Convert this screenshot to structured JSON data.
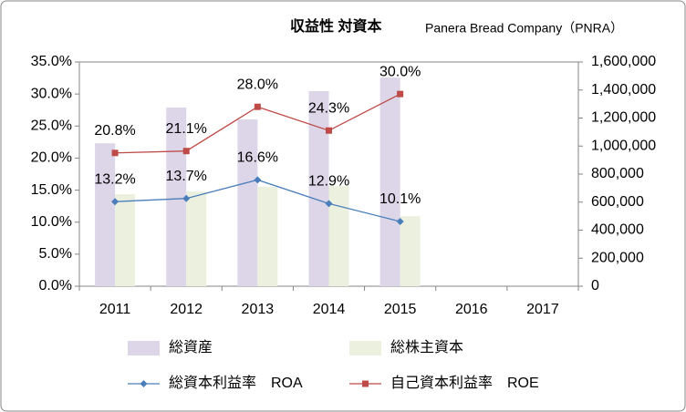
{
  "chart_data": {
    "type": "bar",
    "title": "収益性 対資本",
    "subtitle": "Panera Bread Company（PNRA）",
    "categories": [
      "2011",
      "2012",
      "2013",
      "2014",
      "2015",
      "2016",
      "2017"
    ],
    "series": [
      {
        "name": "総資産",
        "type": "bar",
        "axis": "y2",
        "color": "#ddd6e8",
        "values": [
          1020000,
          1275000,
          1190000,
          1392000,
          1489000,
          null,
          null
        ]
      },
      {
        "name": "総株主資本",
        "type": "bar",
        "axis": "y2",
        "color": "#ebf1de",
        "values": [
          657000,
          676000,
          709000,
          715000,
          500000,
          null,
          null
        ]
      },
      {
        "name": "総資本利益率　ROA",
        "type": "line",
        "color": "#4a7ebb",
        "marker": "diamond",
        "values": [
          13.2,
          13.7,
          16.6,
          12.9,
          10.1,
          null,
          null
        ],
        "value_labels": [
          "13.2%",
          "13.7%",
          "16.6%",
          "12.9%",
          "10.1%",
          null,
          null
        ]
      },
      {
        "name": "自己資本利益率　ROE",
        "type": "line",
        "color": "#be4b48",
        "marker": "square",
        "values": [
          20.8,
          21.1,
          28.0,
          24.3,
          30.0,
          null,
          null
        ],
        "value_labels": [
          "20.8%",
          "21.1%",
          "28.0%",
          "24.3%",
          "30.0%",
          null,
          null
        ]
      }
    ],
    "ylim": [
      0,
      35
    ],
    "yticks": [
      {
        "value": 0,
        "label": "0.0%"
      },
      {
        "value": 5,
        "label": "5.0%"
      },
      {
        "value": 10,
        "label": "10.0%"
      },
      {
        "value": 15,
        "label": "15.0%"
      },
      {
        "value": 20,
        "label": "20.0%"
      },
      {
        "value": 25,
        "label": "25.0%"
      },
      {
        "value": 30,
        "label": "30.0%"
      },
      {
        "value": 35,
        "label": "35.0%"
      }
    ],
    "y2lim": [
      0,
      1600000
    ],
    "y2ticks": [
      0,
      {
        "value": 200000,
        "label": "200,000"
      },
      {
        "value": 400000,
        "label": "400,000"
      },
      {
        "value": 600000,
        "label": "600,000"
      },
      {
        "value": 800000,
        "label": "800,000"
      },
      {
        "value": 1000000,
        "label": "1,000,000"
      },
      {
        "value": 1200000,
        "label": "1,200,000"
      },
      {
        "value": 1400000,
        "label": "1,400,000"
      },
      {
        "value": 1600000,
        "label": "1,600,000"
      }
    ],
    "grid": false,
    "legend": "bottom"
  }
}
